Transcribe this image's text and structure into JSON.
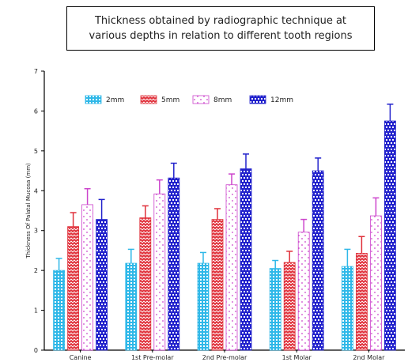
{
  "colors": {
    "2mm": "#2fb8e8",
    "5mm": "#e0303a",
    "8mm": "#cc44cc",
    "12mm": "#2222cc",
    "axis": "#000000"
  },
  "chart_data": {
    "type": "bar",
    "title_lines": [
      "Thickness obtained by radiographic technique at",
      "various depths in relation to different tooth regions"
    ],
    "ylabel": "Thickness Of Palatal Mucosa (mm)",
    "xlabel": "",
    "ylim": [
      0,
      7
    ],
    "yticks": [
      "0",
      "1",
      "2",
      "3",
      "4",
      "5",
      "6",
      "7"
    ],
    "categories": [
      "Canine",
      "1st Pre-molar",
      "2nd Pre-molar",
      "1st Molar",
      "2nd Molar"
    ],
    "legend_position": "top",
    "grid": false,
    "series": [
      {
        "name": "2mm",
        "pattern": "hatch-grid",
        "values": [
          2.0,
          2.18,
          2.18,
          2.05,
          2.1
        ],
        "errors": [
          0.3,
          0.35,
          0.27,
          0.2,
          0.43
        ]
      },
      {
        "name": "5mm",
        "pattern": "zigzag",
        "values": [
          3.1,
          3.32,
          3.28,
          2.2,
          2.43
        ],
        "errors": [
          0.35,
          0.3,
          0.27,
          0.28,
          0.42
        ]
      },
      {
        "name": "8mm",
        "pattern": "dots",
        "values": [
          3.65,
          3.92,
          4.15,
          2.96,
          3.37
        ],
        "errors": [
          0.4,
          0.35,
          0.27,
          0.32,
          0.45
        ]
      },
      {
        "name": "12mm",
        "pattern": "dense-checker",
        "values": [
          3.28,
          4.32,
          4.55,
          4.5,
          5.75
        ],
        "errors": [
          0.5,
          0.37,
          0.37,
          0.32,
          0.42
        ]
      }
    ]
  }
}
